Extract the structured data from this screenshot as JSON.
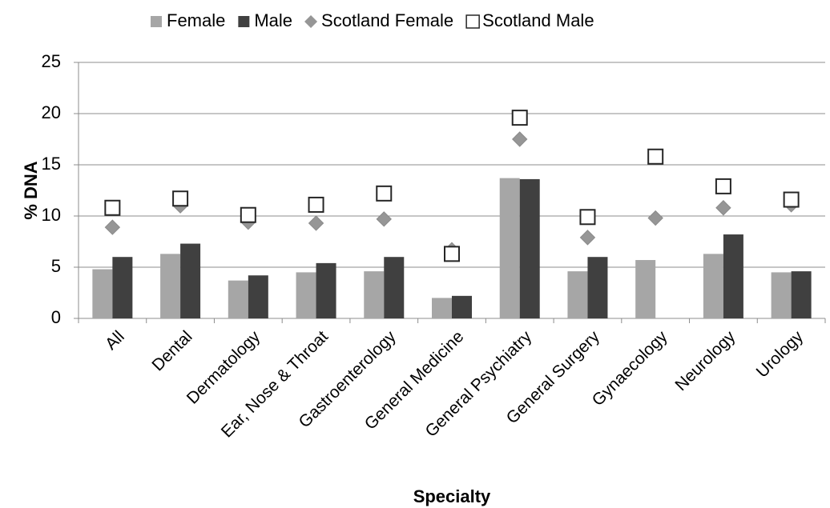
{
  "chart_data": {
    "type": "bar",
    "y_label": "% DNA",
    "x_label": "Specialty",
    "categories": [
      "All",
      "Dental",
      "Dermatology",
      "Ear, Nose & Throat",
      "Gastroenterology",
      "General Medicine",
      "General Psychiatry",
      "General Surgery",
      "Gynaecology",
      "Neurology",
      "Urology"
    ],
    "series": [
      {
        "name": "Female",
        "type": "bar",
        "color": "#a6a6a6",
        "values": [
          4.8,
          6.3,
          3.7,
          4.5,
          4.6,
          2.0,
          13.7,
          4.6,
          5.7,
          6.3,
          4.5
        ]
      },
      {
        "name": "Male",
        "type": "bar",
        "color": "#404040",
        "values": [
          6.0,
          7.3,
          4.2,
          5.4,
          6.0,
          2.2,
          13.6,
          6.0,
          null,
          8.2,
          4.6
        ]
      },
      {
        "name": "Scotland Female",
        "type": "diamond",
        "color": "#969696",
        "values": [
          8.9,
          11.0,
          9.4,
          9.3,
          9.7,
          6.7,
          17.5,
          7.9,
          9.8,
          10.8,
          11.1
        ]
      },
      {
        "name": "Scotland Male",
        "type": "square",
        "color": "#ffffff",
        "values": [
          10.8,
          11.7,
          10.1,
          11.1,
          12.2,
          6.3,
          19.6,
          9.9,
          15.8,
          12.9,
          11.6
        ]
      }
    ],
    "ylim": [
      0,
      25
    ],
    "yticks": [
      0,
      5,
      10,
      15,
      20,
      25
    ],
    "grid": true,
    "legend": "top"
  }
}
